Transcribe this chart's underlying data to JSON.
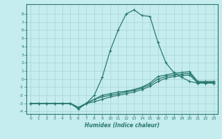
{
  "xlabel": "Humidex (Indice chaleur)",
  "x": [
    0,
    1,
    2,
    3,
    4,
    5,
    6,
    7,
    8,
    9,
    10,
    11,
    12,
    13,
    14,
    15,
    16,
    17,
    18,
    19,
    20,
    21,
    22,
    23
  ],
  "line_main": [
    -3.0,
    -3.0,
    -3.0,
    -3.0,
    -3.0,
    -3.0,
    -3.7,
    -3.0,
    -2.0,
    0.2,
    3.5,
    6.0,
    8.0,
    8.5,
    7.8,
    7.7,
    4.5,
    2.0,
    0.8,
    0.2,
    -0.3,
    -0.5,
    -0.5,
    -0.5
  ],
  "line2": [
    -3.0,
    -3.0,
    -3.0,
    -3.0,
    -3.0,
    -3.0,
    -3.5,
    -3.0,
    -2.5,
    -2.0,
    -1.8,
    -1.6,
    -1.5,
    -1.3,
    -1.0,
    -0.5,
    0.3,
    0.5,
    0.7,
    0.8,
    0.9,
    -0.3,
    -0.3,
    -0.3
  ],
  "line3": [
    -3.0,
    -3.0,
    -3.0,
    -3.0,
    -3.0,
    -3.0,
    -3.5,
    -3.0,
    -2.5,
    -2.2,
    -2.0,
    -1.8,
    -1.6,
    -1.4,
    -1.1,
    -0.7,
    0.0,
    0.3,
    0.5,
    0.6,
    0.7,
    -0.4,
    -0.4,
    -0.4
  ],
  "line4": [
    -3.0,
    -3.0,
    -3.0,
    -3.0,
    -3.0,
    -3.0,
    -3.5,
    -3.0,
    -2.8,
    -2.5,
    -2.2,
    -2.0,
    -1.8,
    -1.6,
    -1.3,
    -0.9,
    -0.3,
    0.1,
    0.3,
    0.4,
    0.5,
    -0.5,
    -0.5,
    -0.5
  ],
  "line_color": "#2a7a6e",
  "bg_color": "#c5ecee",
  "grid_color": "#a8d4d6",
  "ylim": [
    -4.3,
    9.2
  ],
  "xlim": [
    -0.5,
    23.5
  ],
  "yticks": [
    -4,
    -3,
    -2,
    -1,
    0,
    1,
    2,
    3,
    4,
    5,
    6,
    7,
    8
  ],
  "xticks": [
    0,
    1,
    2,
    3,
    4,
    5,
    6,
    7,
    8,
    9,
    10,
    11,
    12,
    13,
    14,
    15,
    16,
    17,
    18,
    19,
    20,
    21,
    22,
    23
  ],
  "markersize": 2.5,
  "linewidth": 0.9
}
